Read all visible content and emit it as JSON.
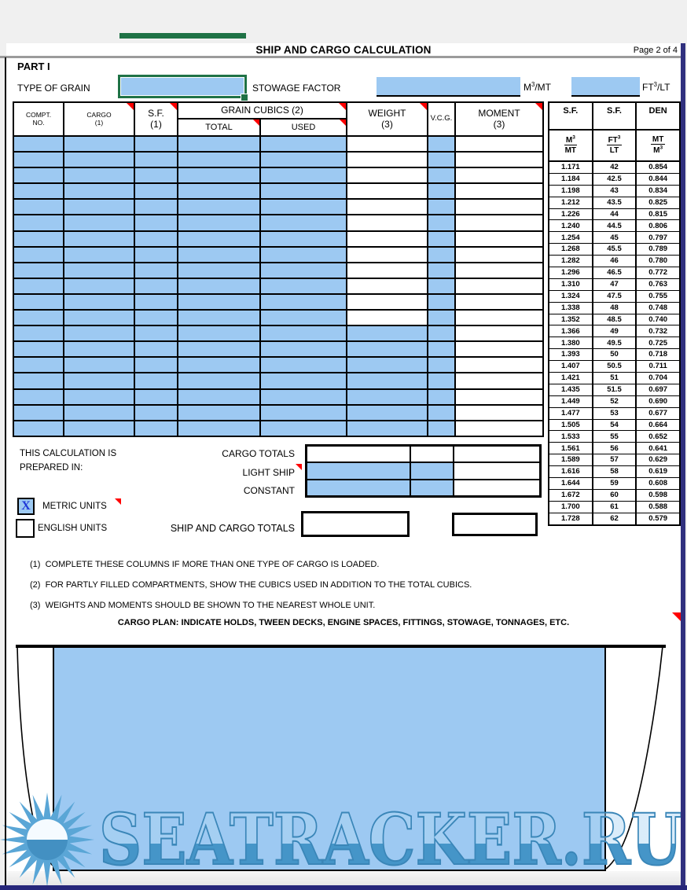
{
  "header": {
    "title": "SHIP AND CARGO CALCULATION",
    "page_label": "Page 2 of 4"
  },
  "part1": {
    "label": "PART I",
    "type_of_grain_label": "TYPE OF GRAIN",
    "type_of_grain_value": "",
    "stowage_factor_label": "STOWAGE FACTOR",
    "stowage_factor_metric_value": "",
    "stowage_factor_english_value": "",
    "unit_m3mt": {
      "base": "M",
      "sup": "3",
      "suffix": "/MT"
    },
    "unit_ft3lt": {
      "base": "FT",
      "sup": "3",
      "suffix": "/LT"
    }
  },
  "main_table": {
    "headers": {
      "compt_line1": "COMPT.",
      "compt_line2": "NO.",
      "cargo_line1": "CARGO",
      "cargo_line2": "(1)",
      "sf_line1": "S.F.",
      "sf_line2": "(1)",
      "grain_cubics": "GRAIN CUBICS (2)",
      "total": "TOTAL",
      "used": "USED",
      "weight_line1": "WEIGHT",
      "weight_line2": "(3)",
      "vcg": "V.C.G.",
      "moment_line1": "MOMENT",
      "moment_line2": "(3)"
    },
    "row_count": 19,
    "weight_shaded_start_row": 13,
    "shaded_columns": [
      "compt_no",
      "cargo",
      "sf",
      "total",
      "used",
      "vcg"
    ],
    "unshaded_columns": [
      "moment"
    ]
  },
  "sf_table": {
    "headers": [
      "S.F.",
      "S.F.",
      "DEN"
    ],
    "subheaders": [
      {
        "num": "M",
        "num_sup": "3",
        "den": "MT",
        "den_sup": ""
      },
      {
        "num": "FT",
        "num_sup": "3",
        "den": "LT",
        "den_sup": ""
      },
      {
        "num": "MT",
        "num_sup": "",
        "den": "M",
        "den_sup": "3"
      }
    ],
    "rows": [
      [
        "1.171",
        "42",
        "0.854"
      ],
      [
        "1.184",
        "42.5",
        "0.844"
      ],
      [
        "1.198",
        "43",
        "0.834"
      ],
      [
        "1.212",
        "43.5",
        "0.825"
      ],
      [
        "1.226",
        "44",
        "0.815"
      ],
      [
        "1.240",
        "44.5",
        "0.806"
      ],
      [
        "1.254",
        "45",
        "0.797"
      ],
      [
        "1.268",
        "45.5",
        "0.789"
      ],
      [
        "1.282",
        "46",
        "0.780"
      ],
      [
        "1.296",
        "46.5",
        "0.772"
      ],
      [
        "1.310",
        "47",
        "0.763"
      ],
      [
        "1.324",
        "47.5",
        "0.755"
      ],
      [
        "1.338",
        "48",
        "0.748"
      ],
      [
        "1.352",
        "48.5",
        "0.740"
      ],
      [
        "1.366",
        "49",
        "0.732"
      ],
      [
        "1.380",
        "49.5",
        "0.725"
      ],
      [
        "1.393",
        "50",
        "0.718"
      ],
      [
        "1.407",
        "50.5",
        "0.711"
      ],
      [
        "1.421",
        "51",
        "0.704"
      ],
      [
        "1.435",
        "51.5",
        "0.697"
      ],
      [
        "1.449",
        "52",
        "0.690"
      ],
      [
        "1.477",
        "53",
        "0.677"
      ],
      [
        "1.505",
        "54",
        "0.664"
      ],
      [
        "1.533",
        "55",
        "0.652"
      ],
      [
        "1.561",
        "56",
        "0.641"
      ],
      [
        "1.589",
        "57",
        "0.629"
      ],
      [
        "1.616",
        "58",
        "0.619"
      ],
      [
        "1.644",
        "59",
        "0.608"
      ],
      [
        "1.672",
        "60",
        "0.598"
      ],
      [
        "1.700",
        "61",
        "0.588"
      ],
      [
        "1.728",
        "62",
        "0.579"
      ]
    ]
  },
  "totals": {
    "prepared_line1": "THIS CALCULATION IS",
    "prepared_line2": "PREPARED IN:",
    "row_labels": [
      "CARGO TOTALS",
      "LIGHT SHIP",
      "CONSTANT"
    ],
    "shading": [
      [
        0,
        0,
        0
      ],
      [
        1,
        1,
        0
      ],
      [
        1,
        1,
        0
      ]
    ]
  },
  "units": {
    "metric_label": "METRIC UNITS",
    "metric_mark": "X",
    "english_label": "ENGLISH UNITS",
    "english_mark": ""
  },
  "ship_cargo_totals_label": "SHIP AND CARGO TOTALS",
  "notes": [
    {
      "num": "(1)",
      "text": "COMPLETE THESE COLUMNS IF MORE THAN ONE TYPE OF CARGO IS LOADED."
    },
    {
      "num": "(2)",
      "text": "FOR PARTLY FILLED COMPARTMENTS, SHOW THE CUBICS USED IN ADDITION TO THE TOTAL CUBICS."
    },
    {
      "num": "(3)",
      "text": "WEIGHTS AND MOMENTS SHOULD BE SHOWN TO THE NEAREST WHOLE UNIT."
    }
  ],
  "cargo_plan": {
    "title": "CARGO PLAN: INDICATE HOLDS, TWEEN DECKS, ENGINE SPACES, FITTINGS, STOWAGE, TONNAGES, ETC."
  },
  "watermark": {
    "text": "SEATRACKER.RU"
  },
  "colors": {
    "input_blue": "#9dc9f2",
    "excel_green": "#1f7246",
    "comment_red": "#ff0000",
    "navy_border": "#30307e",
    "watermark_blue": "#4595c8"
  }
}
